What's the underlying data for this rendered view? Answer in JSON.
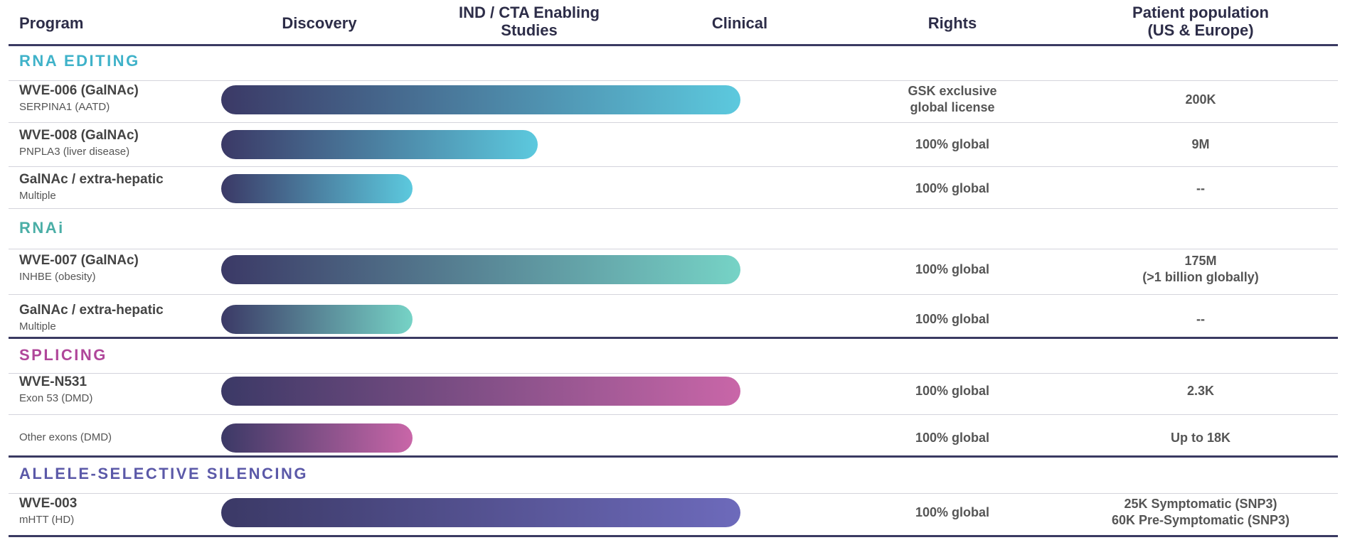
{
  "header": {
    "program": "Program",
    "discovery": "Discovery",
    "ind": [
      "IND / CTA Enabling",
      "Studies"
    ],
    "clinical": "Clinical",
    "rights": "Rights",
    "population": [
      "Patient population",
      "(US & Europe)"
    ]
  },
  "sections": [
    {
      "title": "RNA EDITING",
      "color": "#3fb2c9",
      "bar_end": "#5cc9de",
      "rows": [
        {
          "name": "WVE-006 (GalNAc)",
          "sub": "SERPINA1 (AATD)",
          "rights": [
            "GSK exclusive",
            "global license"
          ],
          "population": [
            "200K"
          ]
        },
        {
          "name": "WVE-008 (GalNAc)",
          "sub": "PNPLA3 (liver disease)",
          "rights": [
            "100% global"
          ],
          "population": [
            "9M"
          ]
        },
        {
          "name": "GalNAc / extra-hepatic",
          "sub": "Multiple",
          "rights": [
            "100% global"
          ],
          "population": [
            "--"
          ]
        }
      ]
    },
    {
      "title": "RNAi",
      "color": "#4aaea6",
      "bar_end": "#76d3c6",
      "rows": [
        {
          "name": "WVE-007 (GalNAc)",
          "sub": "INHBE (obesity)",
          "rights": [
            "100% global"
          ],
          "population": [
            "175M",
            "(>1 billion globally)"
          ]
        },
        {
          "name": "GalNAc / extra-hepatic",
          "sub": "Multiple",
          "rights": [
            "100% global"
          ],
          "population": [
            "--"
          ]
        }
      ]
    },
    {
      "title": "SPLICING",
      "color": "#b0479a",
      "bar_end": "#c966a8",
      "rows": [
        {
          "name": "WVE-N531",
          "sub": "Exon 53 (DMD)",
          "rights": [
            "100% global"
          ],
          "population": [
            "2.3K"
          ]
        },
        {
          "sub": "Other exons (DMD)",
          "rights": [
            "100% global"
          ],
          "population": [
            "Up to 18K"
          ]
        }
      ]
    },
    {
      "title": "ALLELE-SELECTIVE SILENCING",
      "color": "#5b59a8",
      "bar_end": "#6d6abb",
      "rows": [
        {
          "name": "WVE-003",
          "sub": "mHTT (HD)",
          "rights": [
            "100% global"
          ],
          "population": [
            "25K Symptomatic (SNP3)",
            "60K Pre-Symptomatic (SNP3)"
          ]
        }
      ]
    }
  ]
}
